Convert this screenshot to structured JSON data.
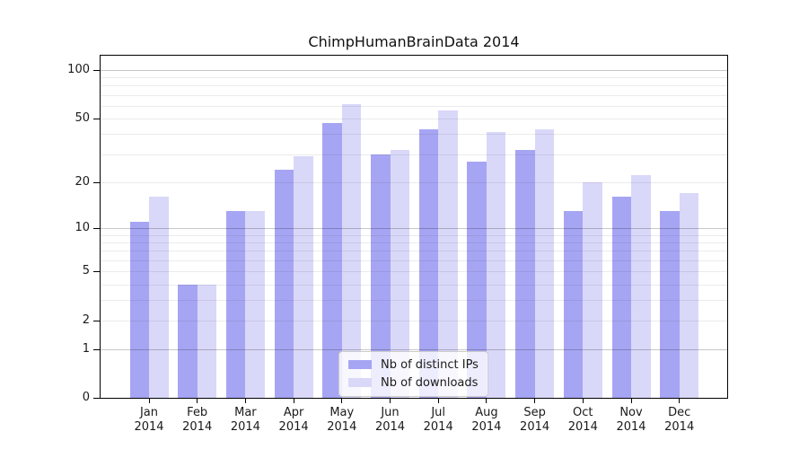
{
  "title": "ChimpHumanBrainData 2014",
  "chart_data": {
    "type": "bar",
    "title": "ChimpHumanBrainData 2014",
    "categories": [
      "Jan 2014",
      "Feb 2014",
      "Mar 2014",
      "Apr 2014",
      "May 2014",
      "Jun 2014",
      "Jul 2014",
      "Aug 2014",
      "Sep 2014",
      "Oct 2014",
      "Nov 2014",
      "Dec 2014"
    ],
    "series": [
      {
        "name": "Nb of distinct IPs",
        "color": "#a6a5f3",
        "values": [
          11,
          4,
          13,
          24,
          47,
          30,
          43,
          27,
          32,
          13,
          16,
          13
        ]
      },
      {
        "name": "Nb of downloads",
        "color": "#d9d8f9",
        "values": [
          16,
          4,
          13,
          29,
          61,
          32,
          56,
          41,
          43,
          20,
          22,
          17
        ]
      }
    ],
    "xlabel": "",
    "ylabel": "",
    "yscale": "log1p",
    "ylim": [
      0,
      122
    ],
    "y_tick_labels": [
      "100",
      "50",
      "20",
      "10",
      "5",
      "2",
      "1",
      "0"
    ],
    "y_tick_values": [
      100,
      50,
      20,
      10,
      5,
      2,
      1,
      0
    ],
    "y_major_gridlines": [
      1,
      10,
      100
    ],
    "y_minor_gridlines": [
      2,
      3,
      4,
      5,
      6,
      7,
      8,
      9,
      20,
      30,
      40,
      50,
      60,
      70,
      80,
      90
    ],
    "grid": true,
    "legend_position": "lower center",
    "colors": {
      "background": "#ffffff",
      "major_grid": "#c6c6c6",
      "minor_grid": "#ececec",
      "axis": "#000000",
      "text": "#1a1a1a",
      "legend_border": "#cccccc",
      "legend_background": "#ffffff"
    }
  }
}
